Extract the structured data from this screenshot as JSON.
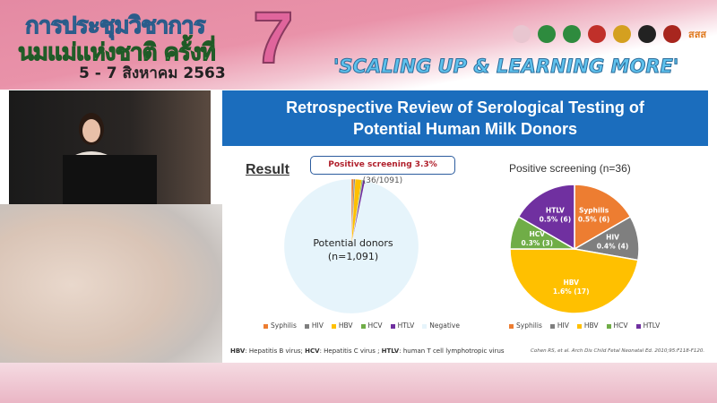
{
  "banner": {
    "line1": "การประชุมวิชาการ",
    "line2": "นมแม่แห่งชาติ ครั้งที่",
    "date": "5 - 7 สิงหาคม 2563",
    "number": "7",
    "tagline": "'SCALING UP & LEARNING MORE'",
    "logos": [
      "logo-1",
      "logo-2",
      "logo-3",
      "logo-4",
      "logo-5",
      "logo-6",
      "logo-7"
    ],
    "sponsor_text": "สสส"
  },
  "slide": {
    "title_line1": "Retrospective Review of Serological Testing of",
    "title_line2": "Potential Human Milk Donors",
    "result_label": "Result",
    "callout_bold": "Positive screening 3.3%",
    "callout_rest": " (36/1091)",
    "donor_label_1": "Potential donors",
    "donor_label_2": "(n=1,091)",
    "footnote": [
      {
        "b": "HBV",
        "t": ": Hepatitis B virus; "
      },
      {
        "b": "HCV",
        "t": ": Hepatitis C virus ; "
      },
      {
        "b": "HTLV",
        "t": ": human T cell lymphotropic virus"
      }
    ],
    "citation": "Cohen RS, et al. Arch Dis Child Fetal Neonatal Ed. 2010;95:F118-F120."
  },
  "colors": {
    "Syphilis": "#ed7d31",
    "HIV": "#7f7f7f",
    "HBV": "#ffc000",
    "HCV": "#70ad47",
    "HTLV": "#7030a0",
    "Negative": "#e6f4fb",
    "header": "#1b6dbd"
  },
  "chart_data": [
    {
      "type": "pie",
      "title": "",
      "categories": [
        "Syphilis",
        "HIV",
        "HBV",
        "HCV",
        "HTLV",
        "Negative"
      ],
      "values": [
        6,
        4,
        17,
        3,
        6,
        1055
      ],
      "legend": "bottom"
    },
    {
      "type": "pie",
      "title": "Positive screening (n=36)",
      "categories": [
        "Syphilis",
        "HIV",
        "HBV",
        "HCV",
        "HTLV"
      ],
      "values": [
        6,
        4,
        17,
        3,
        6
      ],
      "labels": [
        "Syphilis 0.5% (6)",
        "HIV 0.4% (4)",
        "HBV 1.6% (17)",
        "HCV 0.3% (3)",
        "HTLV 0.5% (6)"
      ],
      "legend": "bottom"
    }
  ]
}
